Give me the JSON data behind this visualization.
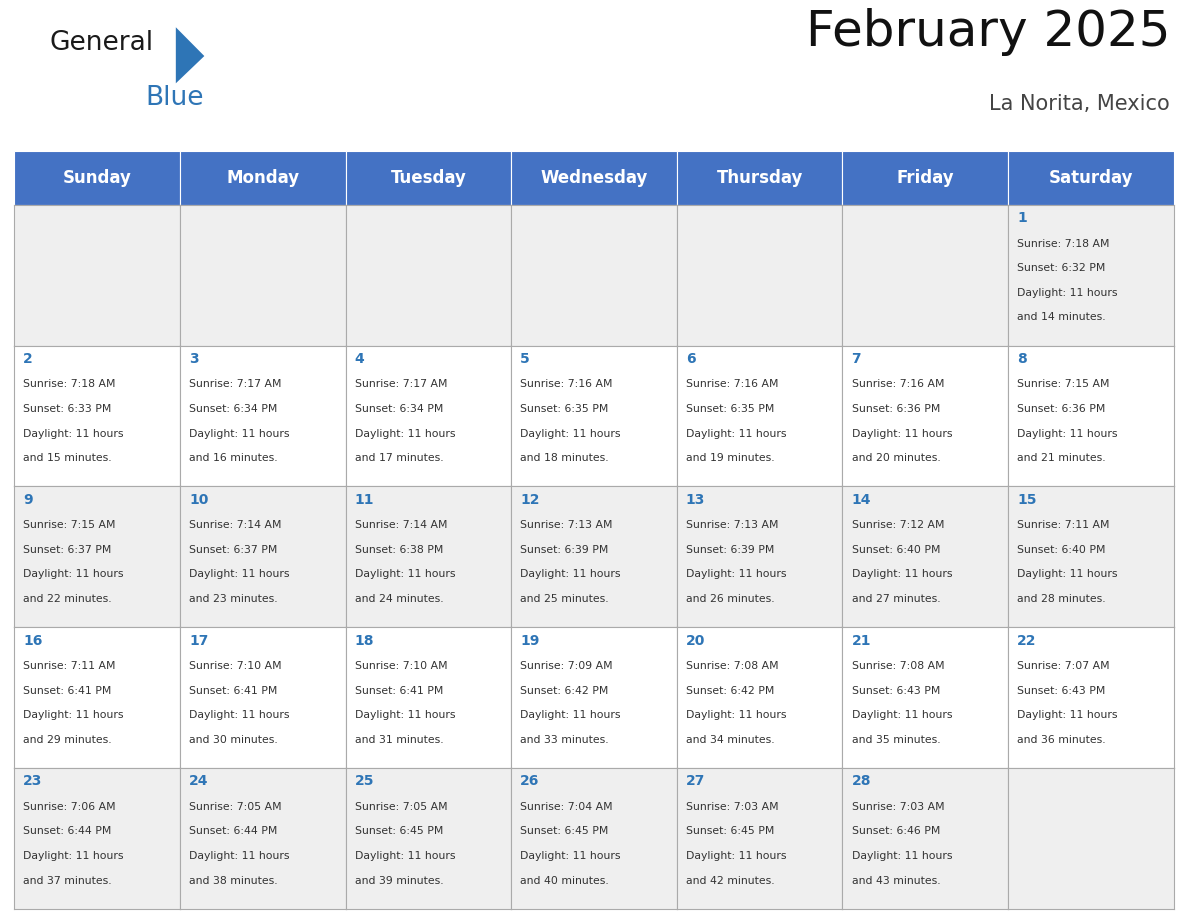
{
  "title": "February 2025",
  "subtitle": "La Norita, Mexico",
  "header_color": "#4472C4",
  "header_text_color": "#FFFFFF",
  "cell_bg_even": "#EFEFEF",
  "cell_bg_odd": "#FFFFFF",
  "border_color": "#AAAAAA",
  "day_headers": [
    "Sunday",
    "Monday",
    "Tuesday",
    "Wednesday",
    "Thursday",
    "Friday",
    "Saturday"
  ],
  "title_fontsize": 36,
  "subtitle_fontsize": 15,
  "header_fontsize": 12,
  "day_num_fontsize": 10,
  "info_fontsize": 7.8,
  "logo_general_color": "#1A1A1A",
  "logo_blue_color": "#2E75B6",
  "calendar": [
    [
      null,
      null,
      null,
      null,
      null,
      null,
      1
    ],
    [
      2,
      3,
      4,
      5,
      6,
      7,
      8
    ],
    [
      9,
      10,
      11,
      12,
      13,
      14,
      15
    ],
    [
      16,
      17,
      18,
      19,
      20,
      21,
      22
    ],
    [
      23,
      24,
      25,
      26,
      27,
      28,
      null
    ]
  ],
  "day_data": {
    "1": {
      "sunrise": "7:18 AM",
      "sunset": "6:32 PM",
      "daylight_l1": "11 hours",
      "daylight_l2": "and 14 minutes."
    },
    "2": {
      "sunrise": "7:18 AM",
      "sunset": "6:33 PM",
      "daylight_l1": "11 hours",
      "daylight_l2": "and 15 minutes."
    },
    "3": {
      "sunrise": "7:17 AM",
      "sunset": "6:34 PM",
      "daylight_l1": "11 hours",
      "daylight_l2": "and 16 minutes."
    },
    "4": {
      "sunrise": "7:17 AM",
      "sunset": "6:34 PM",
      "daylight_l1": "11 hours",
      "daylight_l2": "and 17 minutes."
    },
    "5": {
      "sunrise": "7:16 AM",
      "sunset": "6:35 PM",
      "daylight_l1": "11 hours",
      "daylight_l2": "and 18 minutes."
    },
    "6": {
      "sunrise": "7:16 AM",
      "sunset": "6:35 PM",
      "daylight_l1": "11 hours",
      "daylight_l2": "and 19 minutes."
    },
    "7": {
      "sunrise": "7:16 AM",
      "sunset": "6:36 PM",
      "daylight_l1": "11 hours",
      "daylight_l2": "and 20 minutes."
    },
    "8": {
      "sunrise": "7:15 AM",
      "sunset": "6:36 PM",
      "daylight_l1": "11 hours",
      "daylight_l2": "and 21 minutes."
    },
    "9": {
      "sunrise": "7:15 AM",
      "sunset": "6:37 PM",
      "daylight_l1": "11 hours",
      "daylight_l2": "and 22 minutes."
    },
    "10": {
      "sunrise": "7:14 AM",
      "sunset": "6:37 PM",
      "daylight_l1": "11 hours",
      "daylight_l2": "and 23 minutes."
    },
    "11": {
      "sunrise": "7:14 AM",
      "sunset": "6:38 PM",
      "daylight_l1": "11 hours",
      "daylight_l2": "and 24 minutes."
    },
    "12": {
      "sunrise": "7:13 AM",
      "sunset": "6:39 PM",
      "daylight_l1": "11 hours",
      "daylight_l2": "and 25 minutes."
    },
    "13": {
      "sunrise": "7:13 AM",
      "sunset": "6:39 PM",
      "daylight_l1": "11 hours",
      "daylight_l2": "and 26 minutes."
    },
    "14": {
      "sunrise": "7:12 AM",
      "sunset": "6:40 PM",
      "daylight_l1": "11 hours",
      "daylight_l2": "and 27 minutes."
    },
    "15": {
      "sunrise": "7:11 AM",
      "sunset": "6:40 PM",
      "daylight_l1": "11 hours",
      "daylight_l2": "and 28 minutes."
    },
    "16": {
      "sunrise": "7:11 AM",
      "sunset": "6:41 PM",
      "daylight_l1": "11 hours",
      "daylight_l2": "and 29 minutes."
    },
    "17": {
      "sunrise": "7:10 AM",
      "sunset": "6:41 PM",
      "daylight_l1": "11 hours",
      "daylight_l2": "and 30 minutes."
    },
    "18": {
      "sunrise": "7:10 AM",
      "sunset": "6:41 PM",
      "daylight_l1": "11 hours",
      "daylight_l2": "and 31 minutes."
    },
    "19": {
      "sunrise": "7:09 AM",
      "sunset": "6:42 PM",
      "daylight_l1": "11 hours",
      "daylight_l2": "and 33 minutes."
    },
    "20": {
      "sunrise": "7:08 AM",
      "sunset": "6:42 PM",
      "daylight_l1": "11 hours",
      "daylight_l2": "and 34 minutes."
    },
    "21": {
      "sunrise": "7:08 AM",
      "sunset": "6:43 PM",
      "daylight_l1": "11 hours",
      "daylight_l2": "and 35 minutes."
    },
    "22": {
      "sunrise": "7:07 AM",
      "sunset": "6:43 PM",
      "daylight_l1": "11 hours",
      "daylight_l2": "and 36 minutes."
    },
    "23": {
      "sunrise": "7:06 AM",
      "sunset": "6:44 PM",
      "daylight_l1": "11 hours",
      "daylight_l2": "and 37 minutes."
    },
    "24": {
      "sunrise": "7:05 AM",
      "sunset": "6:44 PM",
      "daylight_l1": "11 hours",
      "daylight_l2": "and 38 minutes."
    },
    "25": {
      "sunrise": "7:05 AM",
      "sunset": "6:45 PM",
      "daylight_l1": "11 hours",
      "daylight_l2": "and 39 minutes."
    },
    "26": {
      "sunrise": "7:04 AM",
      "sunset": "6:45 PM",
      "daylight_l1": "11 hours",
      "daylight_l2": "and 40 minutes."
    },
    "27": {
      "sunrise": "7:03 AM",
      "sunset": "6:45 PM",
      "daylight_l1": "11 hours",
      "daylight_l2": "and 42 minutes."
    },
    "28": {
      "sunrise": "7:03 AM",
      "sunset": "6:46 PM",
      "daylight_l1": "11 hours",
      "daylight_l2": "and 43 minutes."
    }
  }
}
